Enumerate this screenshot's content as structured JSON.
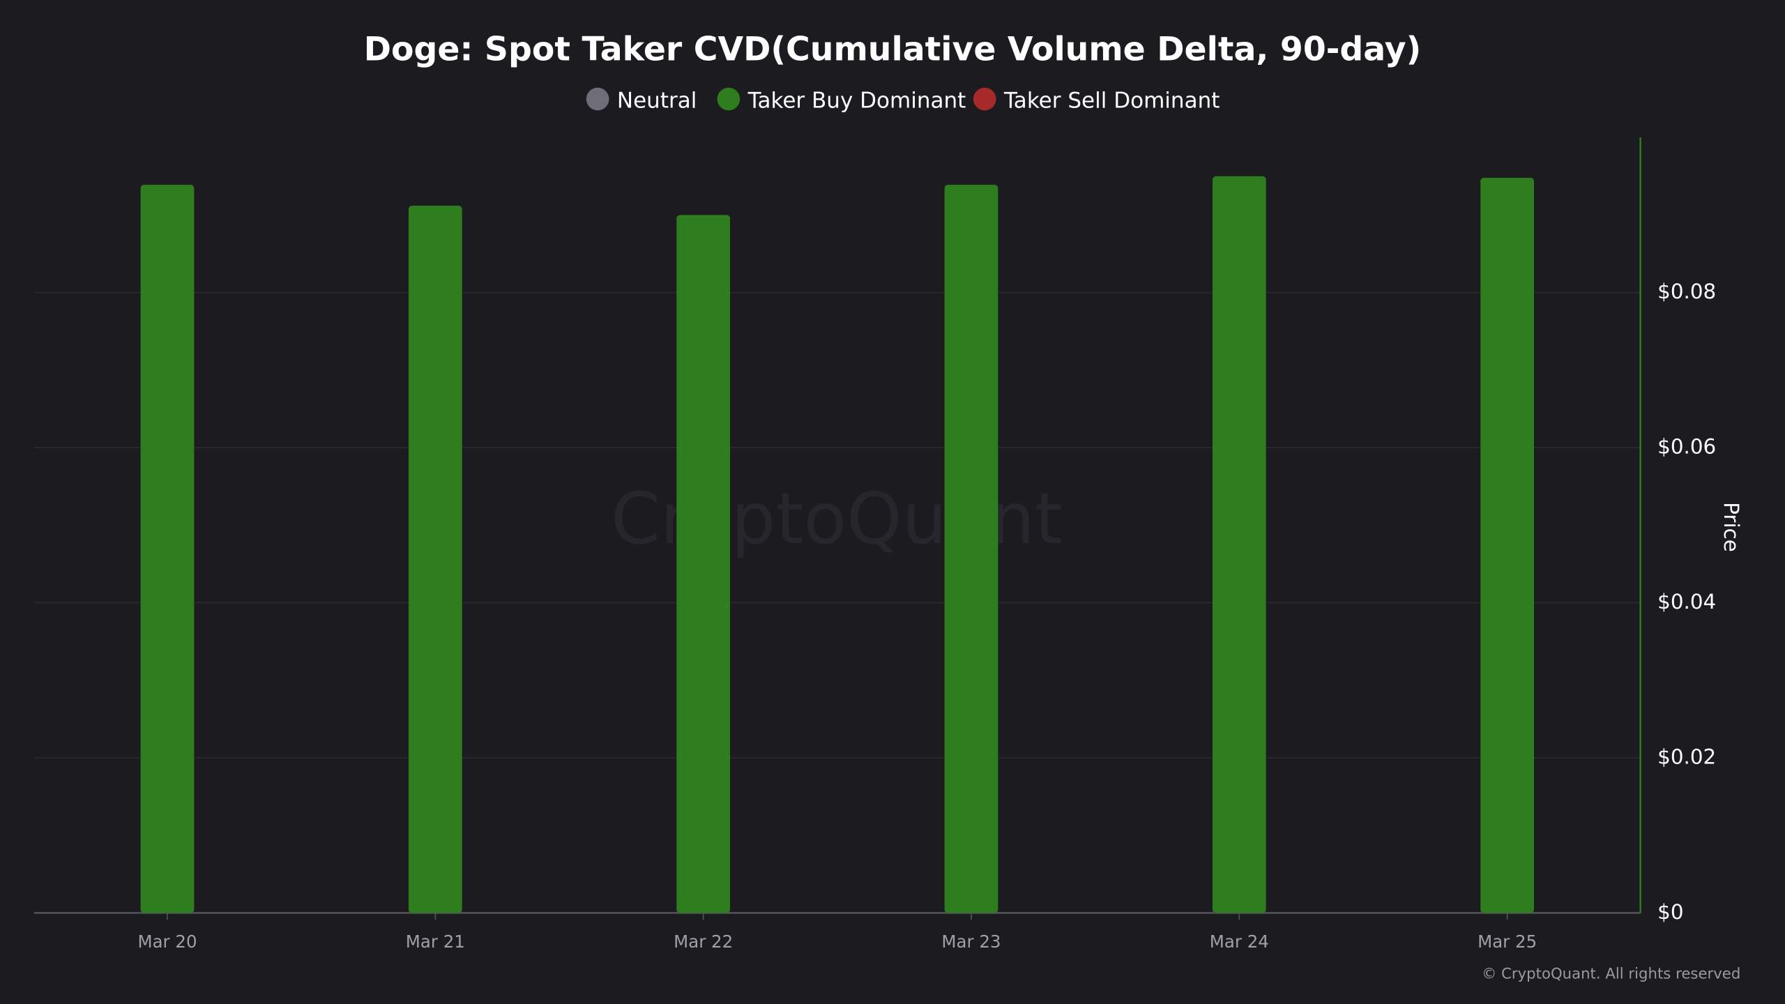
{
  "chart_data": {
    "type": "bar",
    "title": "Doge: Spot Taker CVD(Cumulative Volume Delta, 90-day)",
    "y_axis_label": "Price",
    "watermark": "CryptoQuant",
    "copyright": "© CryptoQuant. All rights reserved",
    "categories": [
      "Mar 20",
      "Mar 21",
      "Mar 22",
      "Mar 23",
      "Mar 24",
      "Mar 25"
    ],
    "series": [
      {
        "name": "Neutral",
        "color": "#6f6e78",
        "values": [
          null,
          null,
          null,
          null,
          null,
          null
        ]
      },
      {
        "name": "Taker Buy Dominant",
        "color": "#2e7d1e",
        "values": [
          0.0939,
          0.0912,
          0.09,
          0.0939,
          0.095,
          0.0948
        ]
      },
      {
        "name": "Taker Sell Dominant",
        "color": "#a72a2a",
        "values": [
          null,
          null,
          null,
          null,
          null,
          null
        ]
      }
    ],
    "ylim": [
      0,
      0.1
    ],
    "yticks": [
      {
        "value": 0,
        "label": "$0"
      },
      {
        "value": 0.02,
        "label": "$0.02"
      },
      {
        "value": 0.04,
        "label": "$0.04"
      },
      {
        "value": 0.06,
        "label": "$0.06"
      },
      {
        "value": 0.08,
        "label": "$0.08"
      }
    ],
    "grid": true
  }
}
